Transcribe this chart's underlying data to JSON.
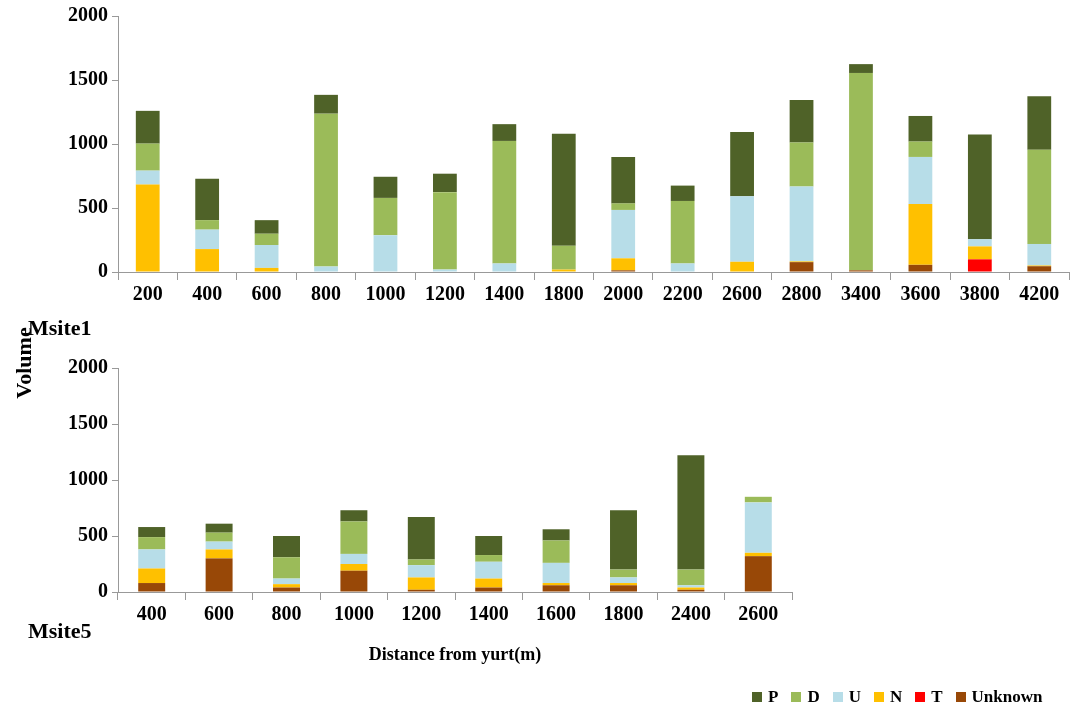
{
  "chart_data": [
    {
      "type": "bar",
      "stacked": true,
      "ylabel": "Volume",
      "annotations": [
        "Msite1"
      ],
      "categories": [
        "200",
        "400",
        "600",
        "800",
        "1000",
        "1200",
        "1400",
        "1800",
        "2000",
        "2200",
        "2600",
        "2800",
        "3400",
        "3600",
        "3800",
        "4200"
      ],
      "series": [
        {
          "color": "#984807",
          "values": [
            0,
            0,
            0,
            0,
            0,
            0,
            0,
            0,
            13,
            0,
            0,
            77,
            13,
            56,
            0,
            45
          ]
        },
        {
          "color": "#ff0000",
          "values": [
            0,
            0,
            0,
            0,
            0,
            0,
            0,
            0,
            0,
            0,
            0,
            0,
            0,
            0,
            99,
            0
          ]
        },
        {
          "color": "#ffc000",
          "values": [
            683,
            179,
            32,
            0,
            0,
            0,
            0,
            19,
            94,
            0,
            80,
            6,
            0,
            475,
            101,
            6
          ]
        },
        {
          "color": "#b7dde8",
          "values": [
            109,
            152,
            179,
            43,
            288,
            19,
            67,
            0,
            378,
            67,
            512,
            584,
            0,
            368,
            56,
            168
          ]
        },
        {
          "color": "#9bbb59",
          "values": [
            211,
            74,
            88,
            1194,
            291,
            605,
            957,
            186,
            51,
            488,
            0,
            344,
            1542,
            120,
            0,
            736
          ]
        },
        {
          "color": "#4f6228",
          "values": [
            256,
            323,
            106,
            147,
            165,
            144,
            131,
            875,
            363,
            120,
            501,
            333,
            69,
            200,
            819,
            418
          ]
        }
      ],
      "ylim": [
        0,
        2000
      ],
      "yticks": [
        0,
        500,
        1000,
        1500,
        2000
      ],
      "grid": false,
      "legend": false
    },
    {
      "type": "bar",
      "stacked": true,
      "xlabel": "Distance from yurt(m)",
      "annotations": [
        "Msite5"
      ],
      "categories": [
        "400",
        "600",
        "800",
        "1000",
        "1200",
        "1400",
        "1600",
        "1800",
        "2400",
        "2600"
      ],
      "series": [
        {
          "name": "Unknown",
          "color": "#984807",
          "values": [
            80,
            300,
            40,
            190,
            20,
            40,
            60,
            60,
            20,
            320
          ]
        },
        {
          "name": "T",
          "color": "#ff0000",
          "values": [
            0,
            0,
            0,
            0,
            0,
            0,
            0,
            0,
            0,
            0
          ]
        },
        {
          "name": "N",
          "color": "#ffc000",
          "values": [
            130,
            80,
            30,
            60,
            110,
            80,
            20,
            20,
            20,
            30
          ]
        },
        {
          "name": "U",
          "color": "#b7dde8",
          "values": [
            170,
            70,
            50,
            90,
            110,
            150,
            180,
            50,
            20,
            450
          ]
        },
        {
          "name": "D",
          "color": "#9bbb59",
          "values": [
            110,
            80,
            190,
            290,
            50,
            60,
            200,
            70,
            140,
            50
          ]
        },
        {
          "name": "P",
          "color": "#4f6228",
          "values": [
            90,
            80,
            190,
            100,
            380,
            170,
            100,
            530,
            1020,
            0
          ]
        }
      ],
      "ylim": [
        0,
        2000
      ],
      "yticks": [
        0,
        500,
        1000,
        1500,
        2000
      ],
      "grid": false,
      "legend": "bottom"
    }
  ]
}
